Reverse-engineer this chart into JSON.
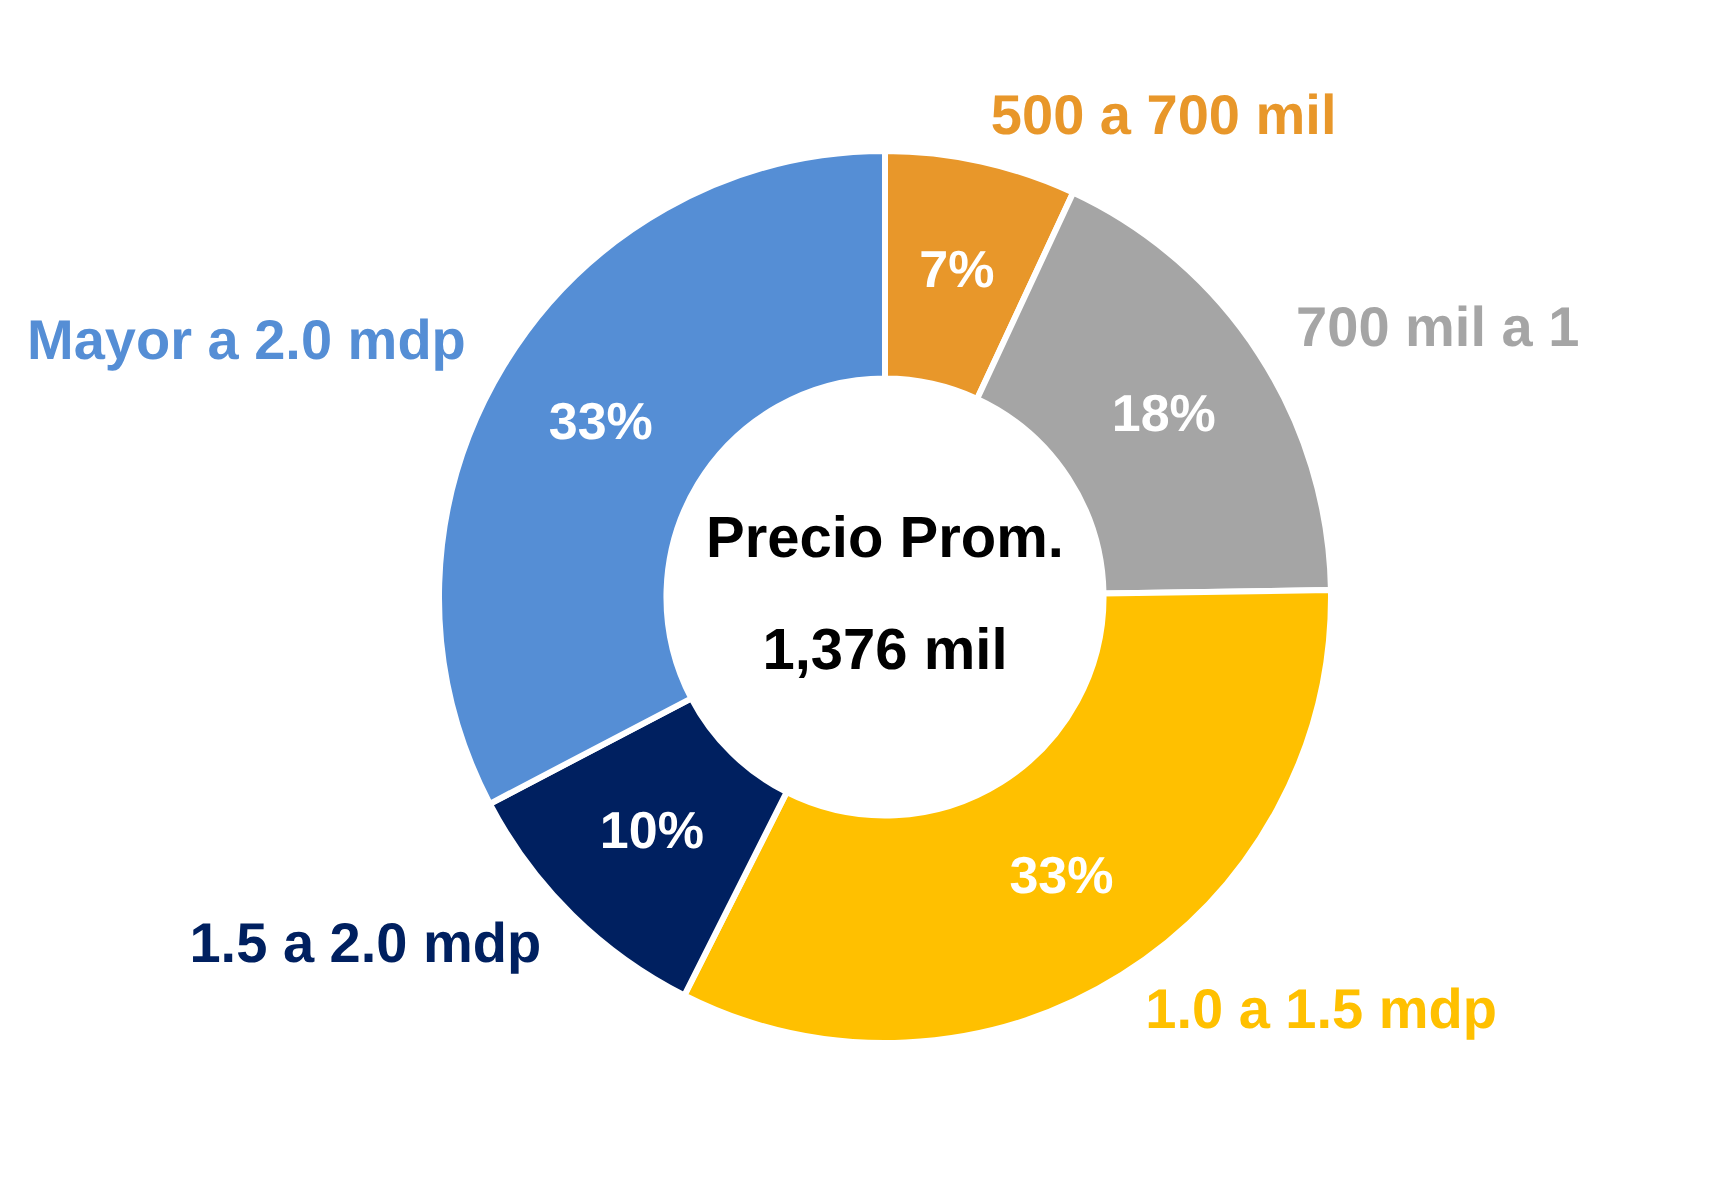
{
  "chart_data": {
    "type": "donut",
    "categories": [
      "500 a 700 mil",
      "700 mil a 1",
      "1.0 a 1.5 mdp",
      "1.5 a 2.0 mdp",
      "Mayor a 2.0 mdp"
    ],
    "values": [
      7,
      18,
      33,
      10,
      33
    ],
    "colors": [
      "#e8972a",
      "#a5a5a5",
      "#ffc000",
      "#002060",
      "#558ed5"
    ],
    "value_labels": [
      "7%",
      "18%",
      "33%",
      "10%",
      "33%"
    ],
    "annotations": [
      "Precio Prom.",
      "1,376 mil"
    ],
    "legend": false
  }
}
